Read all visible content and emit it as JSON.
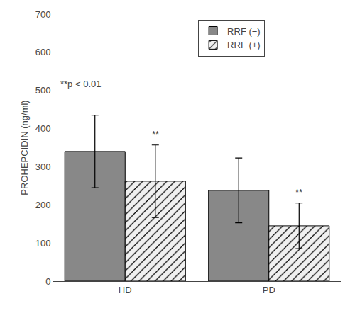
{
  "chart_data": {
    "type": "bar",
    "categories": [
      "HD",
      "PD"
    ],
    "series": [
      {
        "name": "RRF (−)",
        "color": "#888888",
        "values": [
          340,
          238
        ],
        "errors": [
          95,
          85
        ]
      },
      {
        "name": "RRF (+)",
        "color": "#f0f0f0",
        "values": [
          262,
          145
        ],
        "errors": [
          95,
          60
        ]
      }
    ],
    "ylabel": "PROHEPCIDIN (ng/ml)",
    "ylim": [
      0,
      700
    ],
    "yticks": [
      0,
      100,
      200,
      300,
      400,
      500,
      600,
      700
    ],
    "grid": false,
    "legend": "top",
    "annotations": [
      {
        "text": "**p < 0.01"
      },
      {
        "text": "**",
        "category": "HD",
        "series": "RRF (+)"
      },
      {
        "text": "**",
        "category": "PD",
        "series": "RRF (+)"
      }
    ]
  }
}
